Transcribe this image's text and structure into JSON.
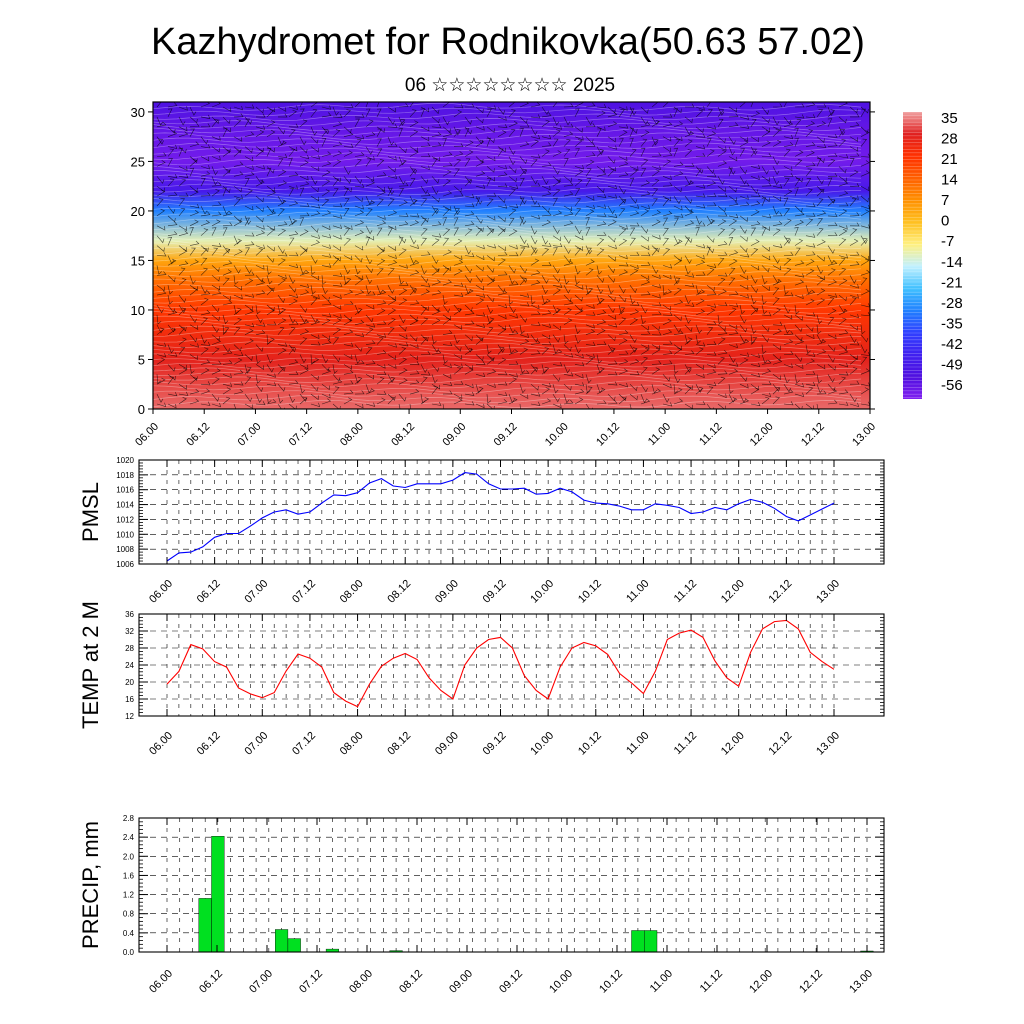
{
  "title": "Kazhydromet for Rodnikovka(50.63 57.02)",
  "subtitle": "06 ☆☆☆☆☆☆☆☆ 2025",
  "time_labels": [
    "06.00",
    "06.12",
    "07.00",
    "07.12",
    "08.00",
    "08.12",
    "09.00",
    "09.12",
    "10.00",
    "10.12",
    "11.00",
    "11.12",
    "12.00",
    "12.12",
    "13.00"
  ],
  "chart_data": [
    {
      "type": "heatmap",
      "name": "cross-section",
      "x": [
        "06.00",
        "06.12",
        "07.00",
        "07.12",
        "08.00",
        "08.12",
        "09.00",
        "09.12",
        "10.00",
        "10.12",
        "11.00",
        "11.12",
        "12.00",
        "12.12",
        "13.00"
      ],
      "ylim": [
        0,
        31
      ],
      "yticks": [
        0,
        5,
        10,
        15,
        20,
        25,
        30
      ],
      "colorbar_labels": [
        "35",
        "28",
        "21",
        "14",
        "7",
        "0",
        "-7",
        "-14",
        "-21",
        "-28",
        "-35",
        "-42",
        "-49",
        "-56"
      ],
      "colorbar_colors": [
        "#f0a0a0",
        "#e02020",
        "#ff3000",
        "#ff6000",
        "#ff9000",
        "#ffc020",
        "#fff080",
        "#c0f0ff",
        "#40c0ff",
        "#2080ff",
        "#3040ff",
        "#4020f0",
        "#5010e0",
        "#8020f0"
      ],
      "profile_levels": [
        0,
        5,
        10,
        13,
        15,
        17,
        20,
        22,
        25,
        28,
        31
      ],
      "profile_values": [
        32,
        27,
        20,
        12,
        4,
        -10,
        -28,
        -45,
        -54,
        -52,
        -48
      ]
    },
    {
      "type": "line",
      "name": "pmsl",
      "ylabel": "PMSL",
      "ylim": [
        1006,
        1020
      ],
      "yticks": [
        1006,
        1008,
        1010,
        1012,
        1014,
        1016,
        1018,
        1020
      ],
      "color": "#0000ff",
      "x_hours_step": 3,
      "values": [
        1006.4,
        1007.5,
        1007.6,
        1008.3,
        1009.6,
        1010.1,
        1010.1,
        1011.1,
        1012.2,
        1013.0,
        1013.3,
        1012.7,
        1013.0,
        1014.2,
        1015.3,
        1015.2,
        1015.6,
        1016.9,
        1017.5,
        1016.5,
        1016.3,
        1016.8,
        1016.8,
        1016.8,
        1017.3,
        1018.3,
        1018.1,
        1016.8,
        1016.1,
        1016.1,
        1016.2,
        1015.4,
        1015.5,
        1016.2,
        1015.7,
        1014.6,
        1014.2,
        1014.1,
        1013.8,
        1013.3,
        1013.3,
        1014.1,
        1013.9,
        1013.6,
        1012.8,
        1013.0,
        1013.6,
        1013.3,
        1014.1,
        1014.7,
        1014.3,
        1013.5,
        1012.4,
        1011.8,
        1012.6,
        1013.4,
        1014.2
      ]
    },
    {
      "type": "line",
      "name": "temp2m",
      "ylabel": "TEMP at 2 M",
      "ylim": [
        12,
        36
      ],
      "yticks": [
        12,
        16,
        20,
        24,
        28,
        32,
        36
      ],
      "color": "#ff0000",
      "x_hours_step": 3,
      "values": [
        19.5,
        22.5,
        28.8,
        27.8,
        24.8,
        23.5,
        18.6,
        17.2,
        16.3,
        17.5,
        22.6,
        26.6,
        25.6,
        23.5,
        17.5,
        15.5,
        14.2,
        19.5,
        23.7,
        25.6,
        26.7,
        25.3,
        21.0,
        18.0,
        16.0,
        24.0,
        28.0,
        30.0,
        30.5,
        28.0,
        21.5,
        18.0,
        16.0,
        23.5,
        28.0,
        29.3,
        28.5,
        26.5,
        22.0,
        19.8,
        17.3,
        22.5,
        30.0,
        31.5,
        32.2,
        30.5,
        25.0,
        21.0,
        19.0,
        27.0,
        32.5,
        34.2,
        34.5,
        32.5,
        27.0,
        24.8,
        23.0
      ]
    },
    {
      "type": "bar",
      "name": "precip",
      "ylabel": "PRECIP, mm",
      "ylim": [
        0,
        2.8
      ],
      "yticks": [
        0.0,
        0.4,
        0.8,
        1.2,
        1.6,
        2.0,
        2.4,
        2.8
      ],
      "yticklabels": [
        "0.0",
        "0.4",
        "0.8",
        "1.2",
        "1.6",
        "2.0",
        "2.4",
        "2.8"
      ],
      "color": "#00e020",
      "x_hours_step": 3,
      "values": [
        0,
        0,
        0,
        1.12,
        2.42,
        0,
        0,
        0,
        0,
        0.47,
        0.28,
        0,
        0,
        0.06,
        0,
        0,
        0,
        0,
        0.03,
        0,
        0,
        0,
        0,
        0,
        0,
        0,
        0,
        0,
        0,
        0,
        0,
        0,
        0,
        0,
        0,
        0,
        0,
        0.45,
        0.45,
        0,
        0,
        0,
        0,
        0,
        0,
        0,
        0,
        0,
        0,
        0,
        0,
        0,
        0,
        0,
        0,
        0.02
      ]
    }
  ]
}
